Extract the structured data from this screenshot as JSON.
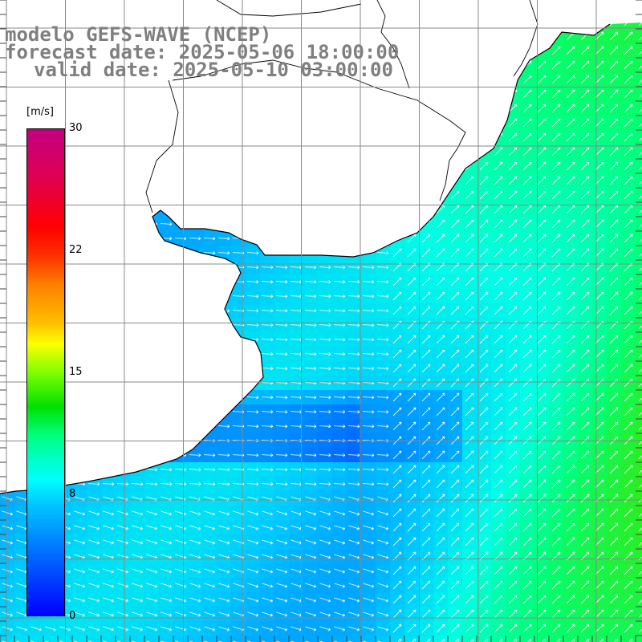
{
  "title": {
    "line1": "modelo GEFS-WAVE (NCEP)",
    "line2": "forecast date: 2025-05-06 18:00:00",
    "line3": "valid date: 2025-05-10 03:00:00"
  },
  "colorbar": {
    "units": "[m/s]",
    "ticks": [
      "30",
      "22",
      "15",
      "8",
      "0"
    ],
    "tick_values": [
      30,
      22,
      15,
      8,
      0
    ],
    "colors": [
      "#0000ff",
      "#00ffff",
      "#00e000",
      "#ffff00",
      "#ff0000",
      "#c00080"
    ]
  },
  "map": {
    "field": "wind speed with direction arrows",
    "land_color": "#ffffff",
    "coast_color": "#000000",
    "grid_color": "#888888"
  }
}
